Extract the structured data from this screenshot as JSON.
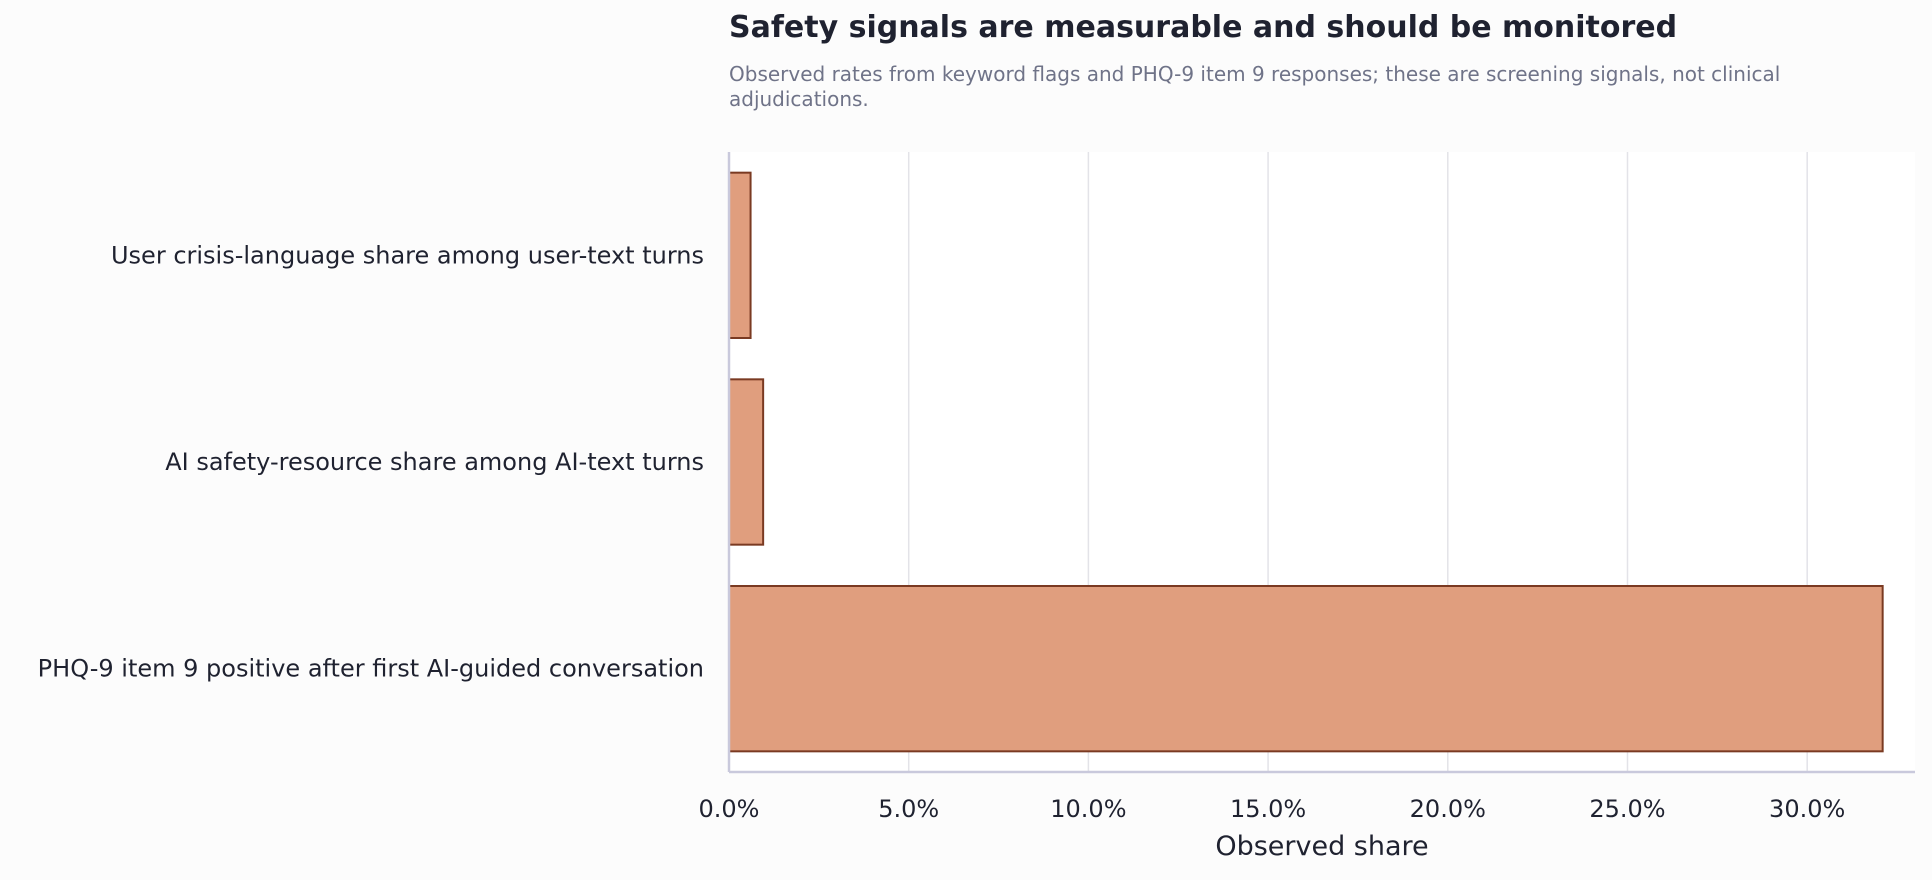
{
  "chart_data": {
    "type": "bar",
    "orientation": "horizontal",
    "title": "Safety signals are measurable and should be monitored",
    "subtitle": "Observed rates from keyword flags and PHQ-9 item 9 responses; these are screening signals, not clinical adjudications.",
    "xlabel": "Observed share",
    "ylabel": "",
    "categories": [
      "User crisis-language share among user-text turns",
      "AI safety-resource share among AI-text turns",
      "PHQ-9 item 9 positive after first AI-guided conversation"
    ],
    "values": [
      0.6,
      0.95,
      32.1
    ],
    "xlim": [
      0,
      33.0
    ],
    "xticks": [
      0,
      5,
      10,
      15,
      20,
      25,
      30
    ],
    "xtick_labels": [
      "0.0%",
      "5.0%",
      "10.0%",
      "15.0%",
      "20.0%",
      "25.0%",
      "30.0%"
    ],
    "grid": "vertical",
    "bar_color": "#e09e7e",
    "bar_edge_color": "#7a3a22",
    "grid_color": "#e3e3e8",
    "axis_color": "#c9c9dc"
  }
}
